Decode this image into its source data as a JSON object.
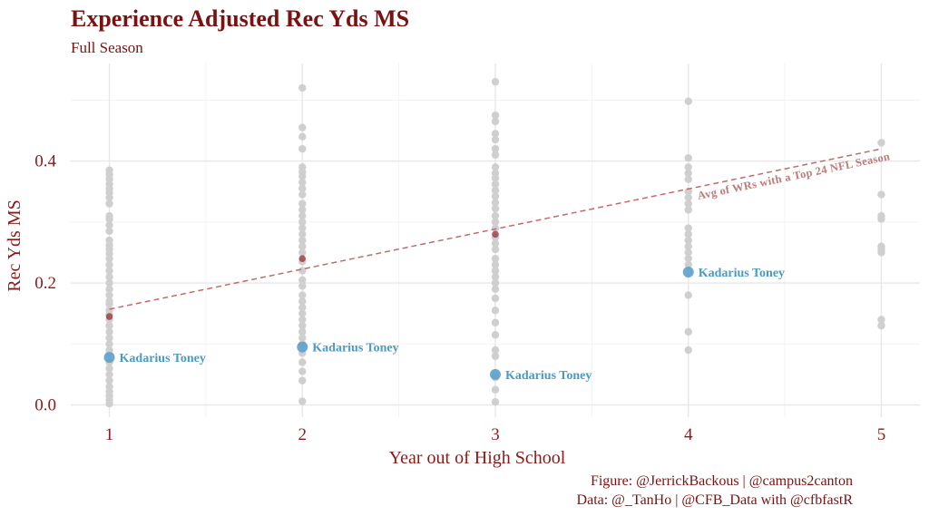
{
  "chart_data": {
    "type": "scatter",
    "title": "Experience Adjusted Rec Yds MS",
    "subtitle": "Full Season",
    "xlabel": "Year out of High School",
    "ylabel": "Rec Yds MS",
    "xlim": [
      0.8,
      5.2
    ],
    "ylim": [
      -0.02,
      0.56
    ],
    "x_ticks": [
      1,
      2,
      3,
      4,
      5
    ],
    "y_ticks": [
      0.0,
      0.2,
      0.4
    ],
    "y_tick_labels": [
      "0.0",
      "0.2",
      "0.4"
    ],
    "grid": true,
    "colors": {
      "population": "#cfcfcf",
      "average": "#9b3a3a",
      "highlight": "#5ba0cc",
      "trend": "#c06b6b",
      "title": "#7a1212"
    },
    "population": [
      {
        "x": 1,
        "values": [
          0.385,
          0.378,
          0.37,
          0.362,
          0.355,
          0.348,
          0.34,
          0.33,
          0.31,
          0.305,
          0.295,
          0.285,
          0.27,
          0.262,
          0.255,
          0.248,
          0.24,
          0.23,
          0.22,
          0.21,
          0.2,
          0.19,
          0.18,
          0.17,
          0.165,
          0.155,
          0.148,
          0.14,
          0.13,
          0.12,
          0.11,
          0.1,
          0.09,
          0.085,
          0.07,
          0.06,
          0.05,
          0.04,
          0.03,
          0.022,
          0.015,
          0.008,
          0.002
        ]
      },
      {
        "x": 2,
        "values": [
          0.52,
          0.455,
          0.44,
          0.42,
          0.39,
          0.382,
          0.375,
          0.365,
          0.355,
          0.345,
          0.33,
          0.32,
          0.31,
          0.3,
          0.29,
          0.28,
          0.27,
          0.26,
          0.25,
          0.235,
          0.22,
          0.205,
          0.195,
          0.18,
          0.17,
          0.16,
          0.15,
          0.14,
          0.13,
          0.12,
          0.11,
          0.1,
          0.085,
          0.07,
          0.055,
          0.04,
          0.006
        ]
      },
      {
        "x": 3,
        "values": [
          0.53,
          0.475,
          0.465,
          0.445,
          0.435,
          0.42,
          0.41,
          0.39,
          0.38,
          0.372,
          0.362,
          0.352,
          0.342,
          0.332,
          0.322,
          0.31,
          0.3,
          0.29,
          0.275,
          0.265,
          0.255,
          0.24,
          0.23,
          0.22,
          0.21,
          0.2,
          0.19,
          0.175,
          0.155,
          0.135,
          0.115,
          0.09,
          0.08,
          0.045,
          0.025,
          0.005
        ]
      },
      {
        "x": 4,
        "values": [
          0.498,
          0.405,
          0.39,
          0.38,
          0.37,
          0.35,
          0.34,
          0.33,
          0.32,
          0.29,
          0.28,
          0.27,
          0.26,
          0.25,
          0.24,
          0.23,
          0.18,
          0.12,
          0.09
        ]
      },
      {
        "x": 5,
        "values": [
          0.43,
          0.345,
          0.31,
          0.305,
          0.26,
          0.255,
          0.25,
          0.14,
          0.13
        ]
      }
    ],
    "averages": [
      {
        "x": 1,
        "y": 0.145
      },
      {
        "x": 2,
        "y": 0.24
      },
      {
        "x": 3,
        "y": 0.28
      }
    ],
    "trend_line": {
      "x": [
        1,
        5
      ],
      "y": [
        0.157,
        0.42
      ]
    },
    "trend_label": "Avg of WRs with a Top 24 NFL Season",
    "highlight_series": {
      "name": "Kadarius Toney",
      "points": [
        {
          "x": 1,
          "y": 0.078
        },
        {
          "x": 2,
          "y": 0.095
        },
        {
          "x": 3,
          "y": 0.05
        },
        {
          "x": 4,
          "y": 0.218
        }
      ]
    }
  },
  "caption": {
    "line1": "Figure: @JerrickBackous | @campus2canton",
    "line2": "Data: @_TanHo | @CFB_Data with @cfbfastR"
  }
}
